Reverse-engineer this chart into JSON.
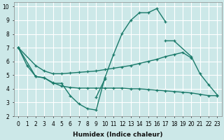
{
  "xlabel": "Humidex (Indice chaleur)",
  "bg_color": "#cce8e8",
  "grid_color": "#ffffff",
  "line_color": "#1a7a6a",
  "xlim": [
    -0.5,
    23.5
  ],
  "ylim": [
    2,
    10.3
  ],
  "xticks": [
    0,
    1,
    2,
    3,
    4,
    5,
    6,
    7,
    8,
    9,
    10,
    11,
    12,
    13,
    14,
    15,
    16,
    17,
    18,
    19,
    20,
    21,
    22,
    23
  ],
  "yticks": [
    2,
    3,
    4,
    5,
    6,
    7,
    8,
    9,
    10
  ],
  "line1_x": [
    0,
    1,
    2,
    3,
    4,
    5,
    6,
    7,
    8,
    9,
    10,
    11,
    12,
    13,
    14,
    15,
    16,
    17
  ],
  "line1_y": [
    7.0,
    5.7,
    4.9,
    4.8,
    4.4,
    4.4,
    3.5,
    2.9,
    2.55,
    2.45,
    4.8,
    6.5,
    8.05,
    9.0,
    9.55,
    9.55,
    9.85,
    8.9
  ],
  "line2_x": [
    0,
    2,
    3,
    4,
    5,
    6,
    7,
    8,
    9,
    10,
    11,
    12,
    13,
    14,
    15,
    16,
    17,
    18,
    19,
    20,
    21,
    22,
    23
  ],
  "line2_y": [
    7.0,
    4.9,
    4.8,
    4.45,
    4.2,
    4.1,
    4.05,
    4.05,
    4.05,
    4.05,
    4.05,
    4.05,
    4.0,
    4.0,
    3.95,
    3.9,
    3.85,
    3.8,
    3.75,
    3.7,
    3.6,
    3.5,
    3.5
  ],
  "line3_x": [
    0,
    2,
    3,
    4,
    5,
    6,
    7,
    8,
    9,
    10,
    11,
    12,
    13,
    14,
    15,
    16,
    17,
    18,
    19,
    20
  ],
  "line3_y": [
    7.0,
    5.7,
    5.3,
    5.1,
    5.1,
    5.15,
    5.2,
    5.25,
    5.3,
    5.4,
    5.5,
    5.6,
    5.7,
    5.85,
    6.0,
    6.15,
    6.35,
    6.5,
    6.65,
    6.25
  ],
  "line4_x": [
    17,
    18,
    20,
    21,
    22,
    23
  ],
  "line4_y": [
    7.5,
    7.5,
    6.35,
    5.1,
    4.3,
    3.55
  ],
  "line5_x": [
    9,
    10
  ],
  "line5_y": [
    3.4,
    4.7
  ],
  "tick_fontsize": 5.5,
  "xlabel_fontsize": 6.5
}
